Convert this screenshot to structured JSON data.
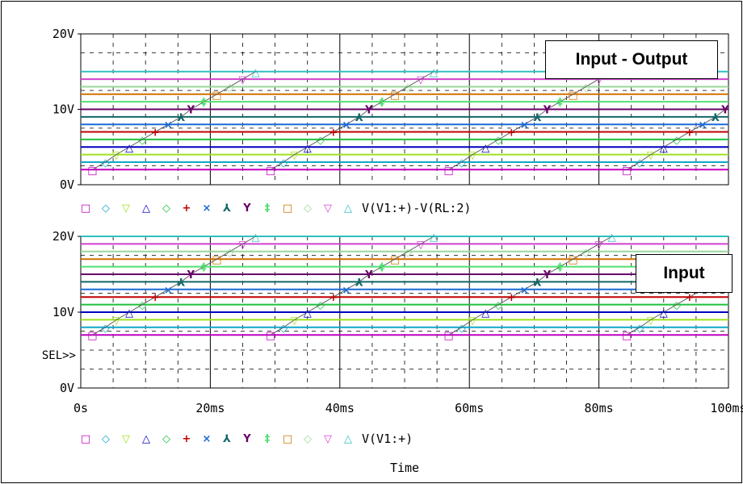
{
  "chart_data": [
    {
      "type": "line",
      "annotation": "Input - Output",
      "ylim": [
        0,
        20
      ],
      "yticks": [
        "0V",
        "10V",
        "20V"
      ],
      "legend_text": "V(V1:+)-V(RL:2)",
      "series": [
        {
          "color": "#c000c0",
          "marker": "□",
          "level": 2.0,
          "rise_time": 1.8
        },
        {
          "color": "#10a8c8",
          "marker": "◇",
          "level": 3.0,
          "rise_time": 3.8
        },
        {
          "color": "#a0e020",
          "marker": "▽",
          "level": 4.0,
          "rise_time": 5.5
        },
        {
          "color": "#0000c0",
          "marker": "△",
          "level": 5.0,
          "rise_time": 7.5
        },
        {
          "color": "#20c040",
          "marker": "◇",
          "level": 6.0,
          "rise_time": 9.5
        },
        {
          "color": "#c00000",
          "marker": "+",
          "level": 7.0,
          "rise_time": 11.5
        },
        {
          "color": "#1c6ad8",
          "marker": "×",
          "level": 8.0,
          "rise_time": 13.5
        },
        {
          "color": "#106868",
          "marker": "⅄",
          "level": 9.0,
          "rise_time": 15.5
        },
        {
          "color": "#680068",
          "marker": "Y",
          "level": 10.0,
          "rise_time": 17.0
        },
        {
          "color": "#50e070",
          "marker": "‡",
          "level": 11.0,
          "rise_time": 19.0
        },
        {
          "color": "#d07000",
          "marker": "□",
          "level": 12.0,
          "rise_time": 21.0
        },
        {
          "color": "#98d898",
          "marker": "◇",
          "level": 13.0,
          "rise_time": 23.0
        },
        {
          "color": "#d040d0",
          "marker": "▽",
          "level": 14.0,
          "rise_time": 25.0
        },
        {
          "color": "#30c0c0",
          "marker": "△",
          "level": 15.0,
          "rise_time": 27.0
        }
      ]
    },
    {
      "type": "line",
      "annotation": "Input",
      "ylim": [
        0,
        20
      ],
      "yticks": [
        "0V",
        "10V",
        "20V"
      ],
      "selector": "SEL>>",
      "legend_text": "V(V1:+)",
      "xticks": [
        "0s",
        "20ms",
        "40ms",
        "60ms",
        "80ms",
        "100ms"
      ],
      "xlim": [
        0,
        100
      ],
      "xlabel": "Time",
      "series": [
        {
          "color": "#c000c0",
          "marker": "□",
          "level": 7.0,
          "rise_time": 1.8
        },
        {
          "color": "#10a8c8",
          "marker": "◇",
          "level": 8.0,
          "rise_time": 3.8
        },
        {
          "color": "#a0e020",
          "marker": "▽",
          "level": 9.0,
          "rise_time": 5.5
        },
        {
          "color": "#0000c0",
          "marker": "△",
          "level": 10.0,
          "rise_time": 7.5
        },
        {
          "color": "#20c040",
          "marker": "◇",
          "level": 11.0,
          "rise_time": 9.5
        },
        {
          "color": "#c00000",
          "marker": "+",
          "level": 12.0,
          "rise_time": 11.5
        },
        {
          "color": "#1c6ad8",
          "marker": "×",
          "level": 13.0,
          "rise_time": 13.5
        },
        {
          "color": "#106868",
          "marker": "⅄",
          "level": 14.0,
          "rise_time": 15.5
        },
        {
          "color": "#680068",
          "marker": "Y",
          "level": 15.0,
          "rise_time": 17.0
        },
        {
          "color": "#50e070",
          "marker": "‡",
          "level": 16.0,
          "rise_time": 19.0
        },
        {
          "color": "#d07000",
          "marker": "□",
          "level": 17.0,
          "rise_time": 21.0
        },
        {
          "color": "#98d898",
          "marker": "◇",
          "level": 18.0,
          "rise_time": 23.0
        },
        {
          "color": "#d040d0",
          "marker": "▽",
          "level": 19.0,
          "rise_time": 25.0
        },
        {
          "color": "#30c0c0",
          "marker": "△",
          "level": 20.0,
          "rise_time": 27.0
        }
      ]
    }
  ]
}
